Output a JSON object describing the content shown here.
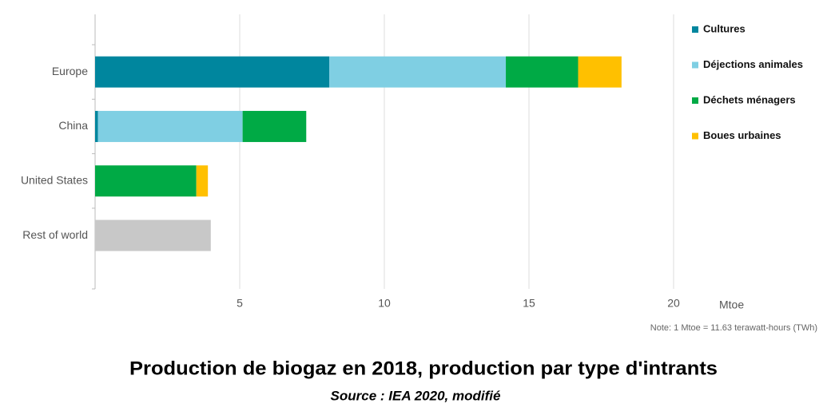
{
  "chart_data": {
    "type": "bar",
    "orientation": "horizontal",
    "stacked": true,
    "title": "Production de biogaz en 2018, production par type d'intrants",
    "subtitle": "Source : IEA 2020, modifié",
    "x_label": "Mtoe",
    "note": "Note: 1 Mtoe = 11.63 terawatt-hours (TWh)",
    "categories": [
      "Europe",
      "China",
      "United States",
      "Rest of world"
    ],
    "series": [
      {
        "name": "Cultures",
        "color": "#00869e",
        "values": [
          8.1,
          0.1,
          null,
          null
        ]
      },
      {
        "name": "Déjections animales",
        "color": "#7fcfe3",
        "values": [
          6.1,
          5.0,
          null,
          null
        ]
      },
      {
        "name": "Déchets ménagers",
        "color": "#00aa45",
        "values": [
          2.5,
          2.2,
          3.5,
          null
        ]
      },
      {
        "name": "Boues urbaines",
        "color": "#ffc000",
        "values": [
          1.5,
          null,
          0.4,
          null
        ]
      },
      {
        "color": "#c8c8c8",
        "values": [
          null,
          null,
          null,
          4.0
        ]
      }
    ],
    "xlim": [
      0,
      20
    ],
    "xticks": [
      5,
      10,
      15,
      20
    ],
    "grid": true
  }
}
